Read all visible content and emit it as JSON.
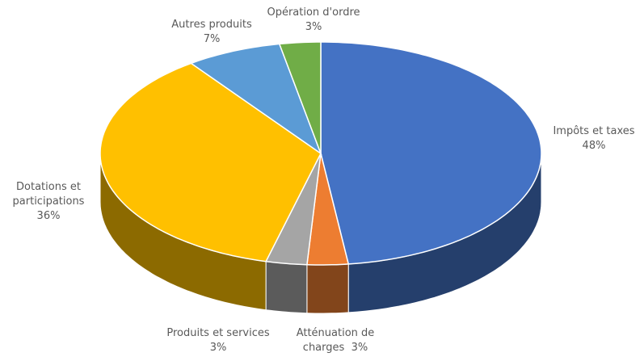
{
  "chart_data": {
    "type": "pie3d",
    "categories": [
      "Impôts et taxes",
      "Atténuation de charges",
      "Produits et services",
      "Dotations et participations",
      "Autres produits",
      "Opération d'ordre"
    ],
    "values": [
      48,
      3,
      3,
      36,
      7,
      3
    ],
    "value_labels": [
      "48%",
      "3%",
      "3%",
      "36%",
      "7%",
      "3%"
    ],
    "colors": [
      "#4472c4",
      "#ed7d31",
      "#a5a5a5",
      "#ffc000",
      "#5b9bd5",
      "#70ad47"
    ]
  }
}
